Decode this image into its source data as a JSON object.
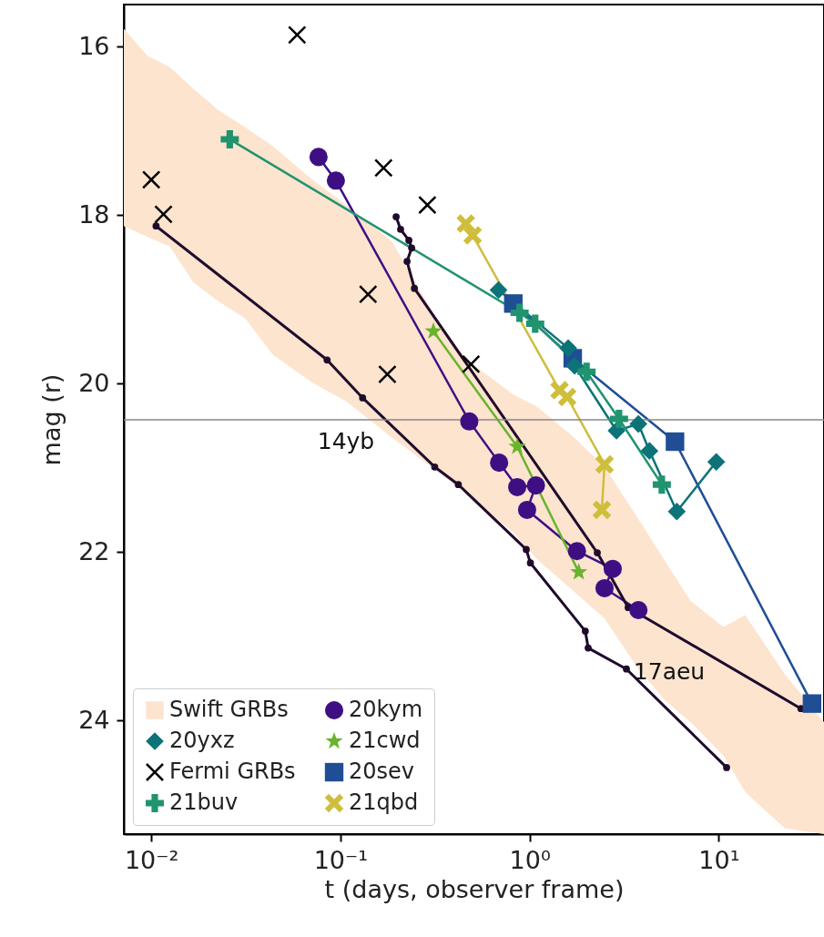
{
  "chart_data": {
    "type": "line",
    "xlabel": "t (days, observer frame)",
    "ylabel": "mag (r)",
    "log": "x",
    "grid": false,
    "legend": "bottom left",
    "xlim": [
      0.00716,
      36.0
    ],
    "xticks": [
      {
        "value": 0.01,
        "label": "10⁻²"
      },
      {
        "value": 0.1,
        "label": "10⁻¹"
      },
      {
        "value": 1,
        "label": "10⁰"
      },
      {
        "value": 10,
        "label": "10¹"
      }
    ],
    "ylim": [
      25.35,
      15.5
    ],
    "yticks": [
      16,
      18,
      20,
      22,
      24
    ],
    "ref_lines": [
      {
        "axis": "y",
        "value": 20.43,
        "color": "#888888"
      }
    ],
    "annotations": [
      "14yb",
      "17aeu"
    ],
    "series": [
      {
        "name": "Swift GRBs",
        "type": "area",
        "color": "#fde4cf",
        "x": [
          0.00716,
          0.00957,
          0.0125,
          0.0167,
          0.0225,
          0.0315,
          0.044,
          0.071,
          0.107,
          0.187,
          0.315,
          0.454,
          0.82,
          1.1,
          1.72,
          2.49,
          3.76,
          5.24,
          7.08,
          10.6,
          13.8,
          22.3,
          36.0
        ],
        "values": [
          null,
          null,
          null,
          null,
          null,
          null,
          null,
          null,
          null,
          null,
          null,
          null,
          null,
          null,
          null,
          null,
          null,
          null,
          null,
          null,
          null,
          null,
          null
        ],
        "lower": [
          18.13,
          18.26,
          18.37,
          18.8,
          19.02,
          19.23,
          19.66,
          19.99,
          20.21,
          20.64,
          21.02,
          21.29,
          21.77,
          22.09,
          22.47,
          22.79,
          23.39,
          23.77,
          24.02,
          24.42,
          24.85,
          25.28,
          25.35
        ],
        "upper": [
          15.79,
          16.11,
          16.24,
          16.5,
          16.75,
          16.96,
          17.18,
          17.58,
          17.88,
          18.31,
          19.2,
          19.7,
          20.13,
          20.28,
          20.64,
          20.99,
          21.61,
          22.12,
          22.58,
          22.89,
          22.75,
          23.45,
          24.02
        ]
      },
      {
        "name": "Fermi GRBs",
        "type": "scatter",
        "color": "#000000",
        "marker": "cross",
        "x": [
          0.01,
          0.0116,
          0.059,
          0.169,
          0.288,
          0.14,
          0.177,
          0.49
        ],
        "values": [
          17.58,
          17.99,
          15.86,
          17.44,
          17.88,
          18.94,
          19.89,
          19.77
        ]
      },
      {
        "name": "20kym",
        "color": "#3e0f83",
        "marker": "circle",
        "x": [
          0.0766,
          0.0946,
          0.48,
          0.69,
          0.86,
          1.08,
          0.97,
          1.78,
          2.75,
          2.49,
          3.76
        ],
        "values": [
          17.31,
          17.59,
          20.45,
          20.94,
          21.23,
          21.21,
          21.5,
          21.99,
          22.2,
          22.43,
          22.69
        ]
      },
      {
        "name": "20sev",
        "color": "#1f4e95",
        "marker": "square",
        "x": [
          0.82,
          1.69,
          5.87,
          31.1
        ],
        "values": [
          19.05,
          19.7,
          20.69,
          23.8
        ]
      },
      {
        "name": "20yxz",
        "color": "#0c7378",
        "marker": "diamond",
        "x": [
          0.685,
          1.6,
          1.73,
          2.88,
          3.76,
          4.3,
          6.0,
          9.7
        ],
        "values": [
          18.89,
          19.58,
          19.79,
          20.56,
          20.48,
          20.8,
          21.52,
          20.93
        ]
      },
      {
        "name": "21buv",
        "color": "#20936f",
        "marker": "plus",
        "x": [
          0.026,
          0.885,
          1.07,
          2.0,
          2.97,
          5.0
        ],
        "values": [
          17.1,
          19.16,
          19.29,
          19.86,
          20.42,
          21.2
        ]
      },
      {
        "name": "21cwd",
        "color": "#6ab42d",
        "marker": "star",
        "x": [
          0.31,
          0.86,
          1.82
        ],
        "values": [
          19.38,
          20.75,
          22.24
        ]
      },
      {
        "name": "21qbd",
        "color": "#cfbe3c",
        "marker": "x",
        "x": [
          0.46,
          0.5,
          1.44,
          1.58,
          2.49,
          2.41
        ],
        "values": [
          18.1,
          18.24,
          20.08,
          20.16,
          20.96,
          21.5
        ]
      },
      {
        "color": "#1f0b2c",
        "marker": "circle",
        "x": [
          0.0106,
          0.085,
          0.131,
          0.315,
          0.42,
          0.96,
          1.01,
          1.97,
          2.04,
          3.25,
          11.0
        ],
        "values": [
          18.13,
          19.72,
          20.17,
          20.99,
          21.2,
          21.97,
          22.13,
          22.94,
          23.14,
          23.39,
          24.56
        ]
      },
      {
        "color": "#1f0b2c",
        "marker": "circle",
        "x": [
          0.197,
          0.208,
          0.23,
          0.238,
          0.225,
          0.246,
          2.28,
          3.32,
          27.2
        ],
        "values": [
          18.02,
          18.17,
          18.3,
          18.39,
          18.55,
          18.87,
          22.01,
          22.66,
          23.86
        ]
      }
    ]
  }
}
